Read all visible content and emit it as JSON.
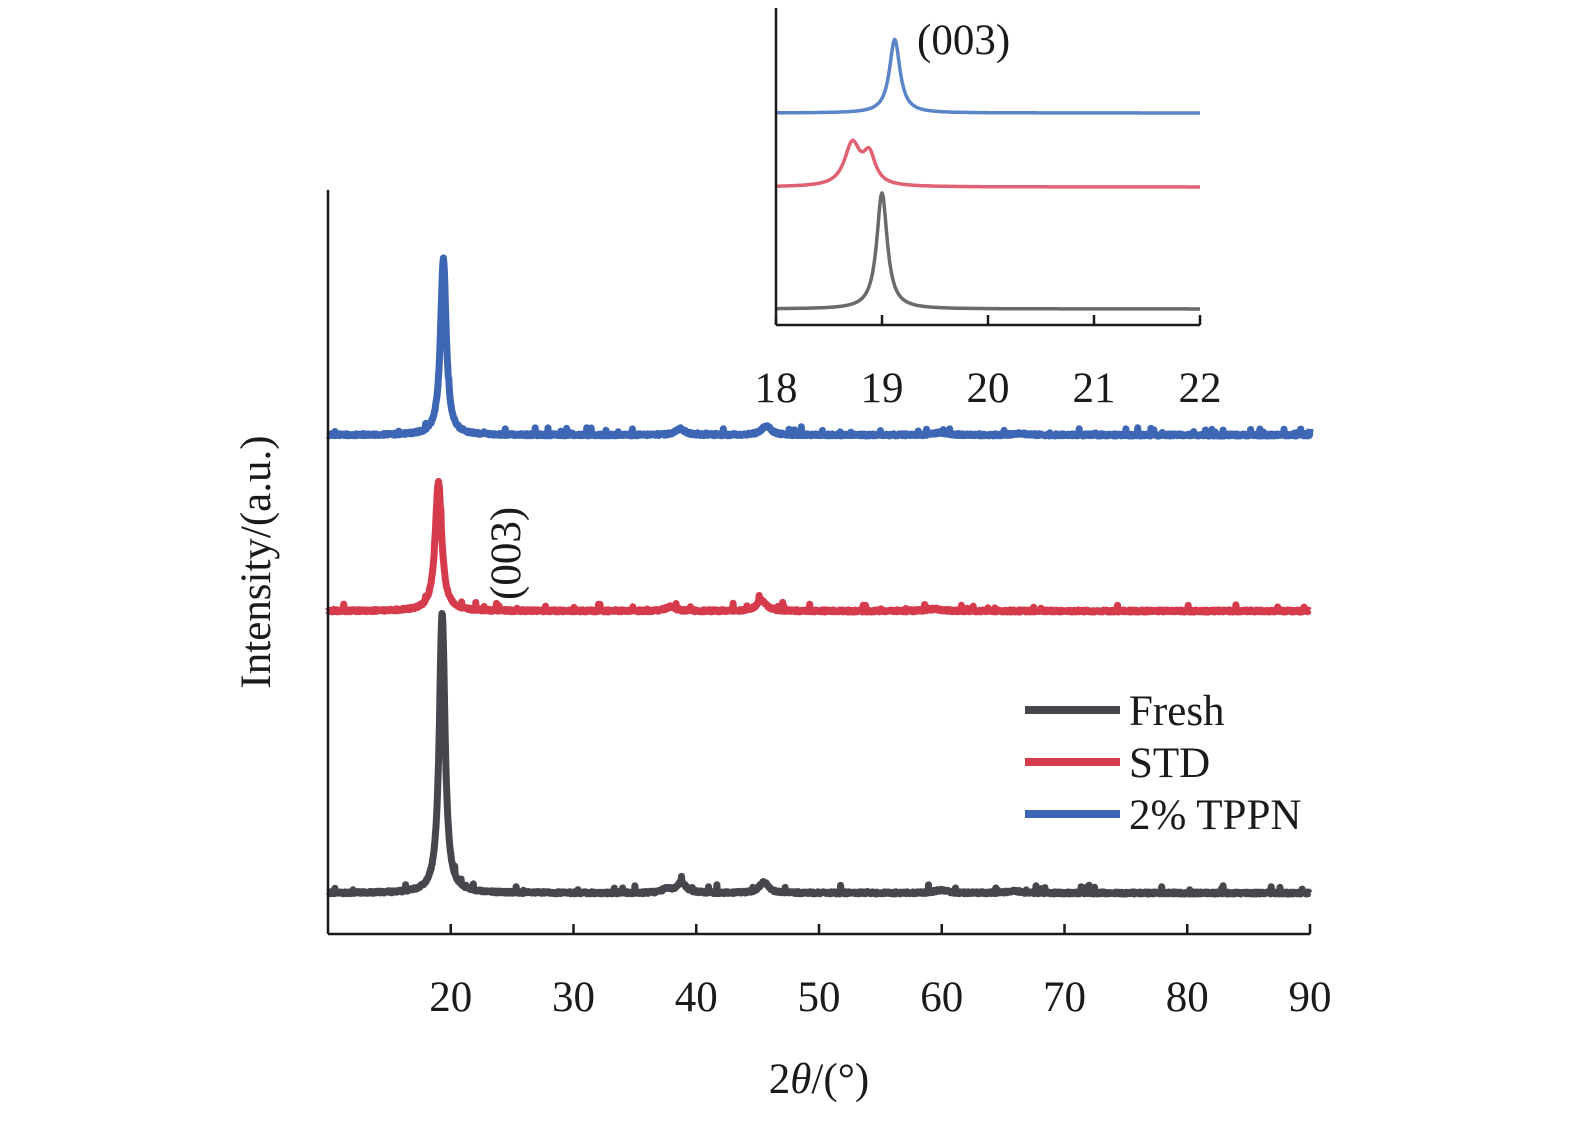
{
  "chart_data": [
    {
      "type": "line",
      "panel": "main",
      "xlabel_prefix": "2",
      "xlabel_symbol": "θ",
      "xlabel_suffix": "/(°)",
      "ylabel": "Intensity/(a.u.)",
      "xlim": [
        10,
        90
      ],
      "x_ticks": [
        20,
        30,
        40,
        50,
        60,
        70,
        80,
        90
      ],
      "y_ticks_shown": false,
      "grid": false,
      "legend_position": "bottom-right",
      "annotation": "(003)",
      "series": [
        {
          "name": "Fresh",
          "color": "#46474c",
          "baseline": 0.0,
          "peaks": [
            {
              "x": 19.3,
              "height": 0.78,
              "width": 0.28
            },
            {
              "x": 37.6,
              "height": 0.012,
              "width": 0.4
            },
            {
              "x": 38.8,
              "height": 0.028,
              "width": 0.45
            },
            {
              "x": 45.5,
              "height": 0.03,
              "width": 0.45
            },
            {
              "x": 59.9,
              "height": 0.008,
              "width": 0.6
            },
            {
              "x": 65.9,
              "height": 0.006,
              "width": 0.6
            }
          ]
        },
        {
          "name": "STD",
          "color": "#d63b4c",
          "baseline": 0.0,
          "peaks": [
            {
              "x": 19.0,
              "height": 0.36,
              "width": 0.32
            },
            {
              "x": 37.9,
              "height": 0.012,
              "width": 0.45
            },
            {
              "x": 45.3,
              "height": 0.03,
              "width": 0.45
            },
            {
              "x": 59.4,
              "height": 0.006,
              "width": 0.6
            }
          ]
        },
        {
          "name": "2% TPPN",
          "color": "#3d66b4",
          "baseline": 0.0,
          "peaks": [
            {
              "x": 19.4,
              "height": 0.49,
              "width": 0.28
            },
            {
              "x": 38.7,
              "height": 0.018,
              "width": 0.45
            },
            {
              "x": 45.7,
              "height": 0.026,
              "width": 0.45
            },
            {
              "x": 59.9,
              "height": 0.007,
              "width": 0.6
            },
            {
              "x": 66.3,
              "height": 0.005,
              "width": 0.6
            }
          ]
        }
      ]
    },
    {
      "type": "line",
      "panel": "inset",
      "xlim": [
        18,
        22
      ],
      "x_ticks": [
        18,
        19,
        20,
        21,
        22
      ],
      "annotation": "(003)",
      "grid": false,
      "series": [
        {
          "name": "Fresh",
          "color": "#6a6a6e",
          "peaks": [
            {
              "x": 19.0,
              "height": 1.0,
              "width": 0.06
            }
          ]
        },
        {
          "name": "STD",
          "color": "#e06172",
          "peaks": [
            {
              "x": 18.72,
              "height": 0.55,
              "width": 0.09
            },
            {
              "x": 18.88,
              "height": 0.38,
              "width": 0.07
            }
          ]
        },
        {
          "name": "2% TPPN",
          "color": "#5a86c9",
          "peaks": [
            {
              "x": 19.12,
              "height": 0.75,
              "width": 0.06
            }
          ]
        }
      ]
    }
  ]
}
